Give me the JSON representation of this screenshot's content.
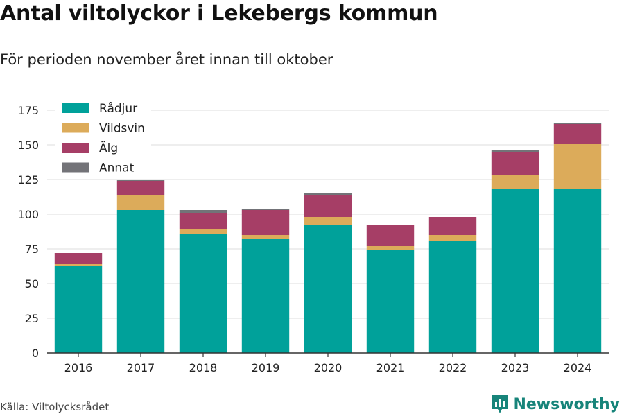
{
  "header": {
    "title": "Antal viltolyckor i Lekebergs kommun",
    "subtitle": "För perioden november året innan till oktober"
  },
  "footer": {
    "source": "Källa: Viltolycksrådet",
    "brand": "Newsworthy",
    "brand_icon": "bar-chart-logo-icon"
  },
  "colors": {
    "Rådjur": "#00a19a",
    "Vildsvin": "#dcab5a",
    "Älg": "#a63e66",
    "Annat": "#737378",
    "grid": "#dddddd",
    "brand": "#17847a"
  },
  "chart_data": {
    "type": "bar",
    "stacked": true,
    "title": "Antal viltolyckor i Lekebergs kommun",
    "subtitle": "För perioden november året innan till oktober",
    "xlabel": "",
    "ylabel": "",
    "ylim": [
      0,
      175
    ],
    "yticks": [
      0,
      25,
      50,
      75,
      100,
      125,
      150,
      175
    ],
    "grid": true,
    "legend_position": "top-left",
    "categories": [
      "2016",
      "2017",
      "2018",
      "2019",
      "2020",
      "2021",
      "2022",
      "2023",
      "2024"
    ],
    "series": [
      {
        "name": "Rådjur",
        "values": [
          63,
          103,
          86,
          82,
          92,
          74,
          81,
          118,
          118
        ]
      },
      {
        "name": "Vildsvin",
        "values": [
          1,
          11,
          3,
          3,
          6,
          3,
          4,
          10,
          33
        ]
      },
      {
        "name": "Älg",
        "values": [
          8,
          10,
          12,
          18,
          16,
          15,
          13,
          17,
          14
        ]
      },
      {
        "name": "Annat",
        "values": [
          0,
          1,
          2,
          1,
          1,
          0,
          0,
          1,
          1
        ]
      }
    ]
  }
}
